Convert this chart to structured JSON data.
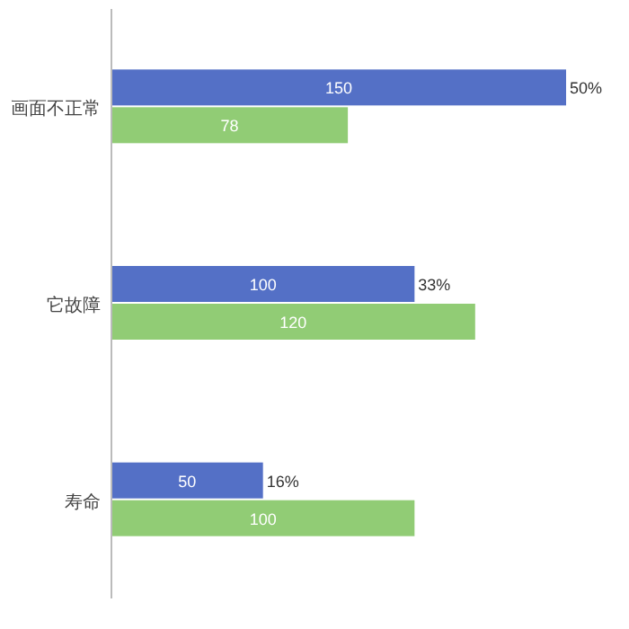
{
  "chart_data": {
    "type": "bar",
    "orientation": "horizontal",
    "categories": [
      "画面不正常",
      "它故障",
      "寿命"
    ],
    "series": [
      {
        "color": "#5470c6",
        "values": [
          150,
          100,
          50
        ]
      },
      {
        "color": "#91cc75",
        "values": [
          78,
          120,
          100
        ]
      }
    ],
    "data_labels": true,
    "annotations": [
      {
        "text": "50%",
        "x": 150,
        "y": "画面不正常"
      },
      {
        "text": "33%",
        "x": 100,
        "y": "它故障"
      },
      {
        "text": "16%",
        "x": 50,
        "y": "寿命"
      }
    ]
  }
}
